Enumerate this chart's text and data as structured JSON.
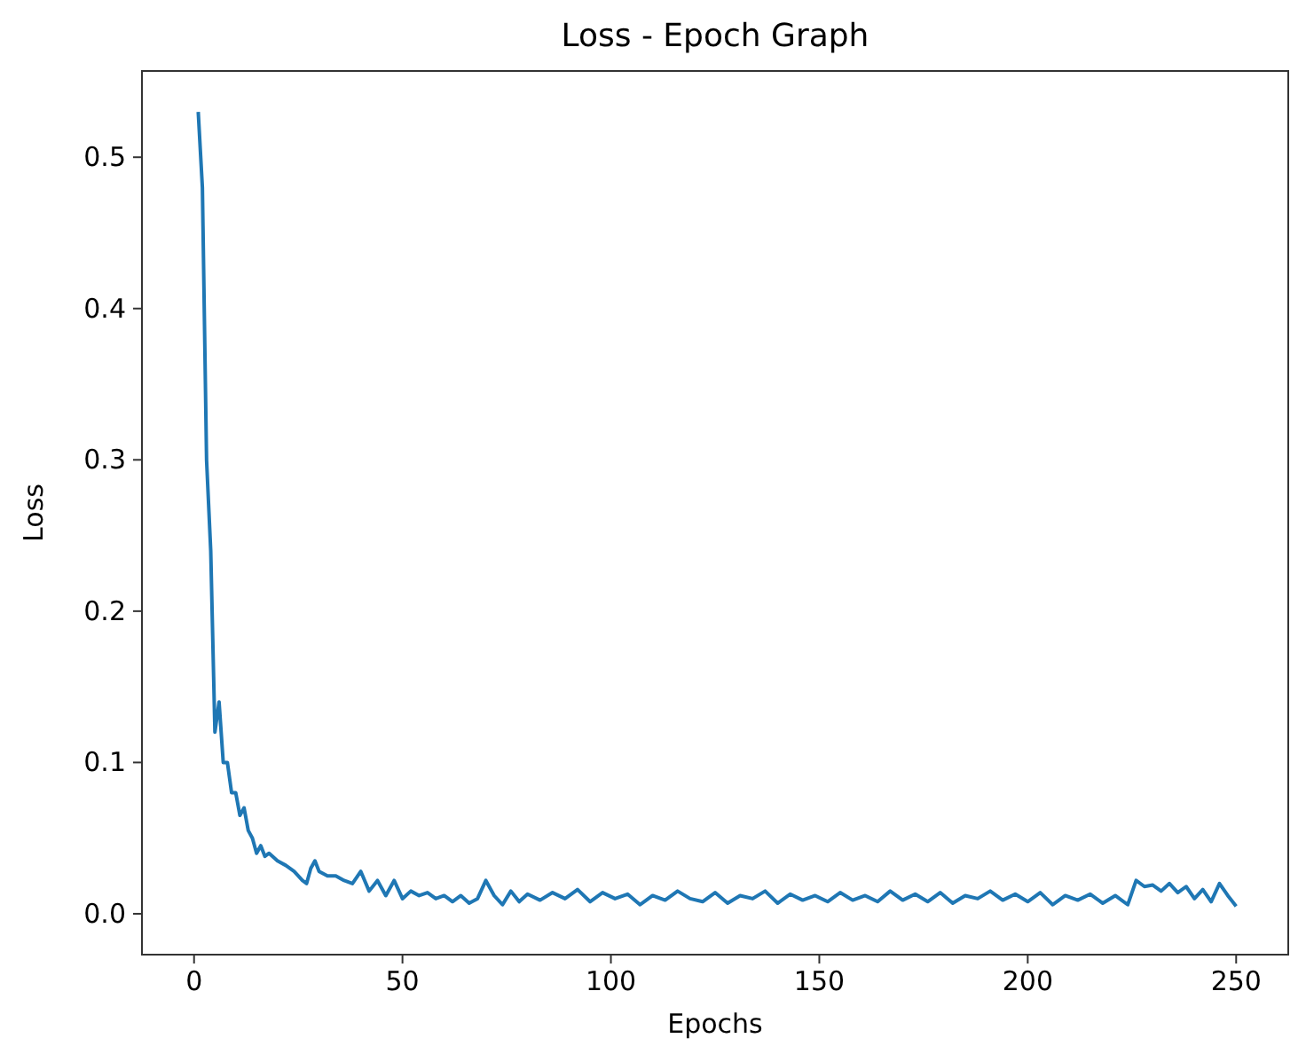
{
  "chart_data": {
    "type": "line",
    "title": "Loss - Epoch Graph",
    "xlabel": "Epochs",
    "ylabel": "Loss",
    "xlim": [
      -12.5,
      262.5
    ],
    "ylim": [
      -0.027,
      0.557
    ],
    "xticks": [
      0,
      50,
      100,
      150,
      200,
      250
    ],
    "yticks": [
      {
        "value": 0,
        "label": "0.0"
      },
      0.1,
      0.2,
      0.3,
      0.4,
      0.5
    ],
    "grid": false,
    "series": [
      {
        "color": "#1f77b4",
        "x": [
          1,
          2,
          3,
          4,
          5,
          6,
          7,
          8,
          9,
          10,
          11,
          12,
          13,
          14,
          15,
          16,
          17,
          18,
          20,
          22,
          24,
          26,
          27,
          28,
          29,
          30,
          32,
          34,
          36,
          38,
          40,
          42,
          44,
          46,
          48,
          50,
          52,
          54,
          56,
          58,
          60,
          62,
          64,
          66,
          68,
          70,
          72,
          74,
          76,
          78,
          80,
          83,
          86,
          89,
          92,
          95,
          98,
          101,
          104,
          107,
          110,
          113,
          116,
          119,
          122,
          125,
          128,
          131,
          134,
          137,
          140,
          143,
          146,
          149,
          152,
          155,
          158,
          161,
          164,
          167,
          170,
          173,
          176,
          179,
          182,
          185,
          188,
          191,
          194,
          197,
          200,
          203,
          206,
          209,
          212,
          215,
          218,
          221,
          224,
          226,
          228,
          230,
          232,
          234,
          236,
          238,
          240,
          242,
          244,
          246,
          248,
          250
        ],
        "values": [
          0.53,
          0.48,
          0.3,
          0.24,
          0.12,
          0.14,
          0.1,
          0.1,
          0.08,
          0.08,
          0.065,
          0.07,
          0.055,
          0.05,
          0.04,
          0.045,
          0.038,
          0.04,
          0.035,
          0.032,
          0.028,
          0.022,
          0.02,
          0.03,
          0.035,
          0.028,
          0.025,
          0.025,
          0.022,
          0.02,
          0.028,
          0.015,
          0.022,
          0.012,
          0.022,
          0.01,
          0.015,
          0.012,
          0.014,
          0.01,
          0.012,
          0.008,
          0.012,
          0.007,
          0.01,
          0.022,
          0.012,
          0.006,
          0.015,
          0.008,
          0.013,
          0.009,
          0.014,
          0.01,
          0.016,
          0.008,
          0.014,
          0.01,
          0.013,
          0.006,
          0.012,
          0.009,
          0.015,
          0.01,
          0.008,
          0.014,
          0.007,
          0.012,
          0.01,
          0.015,
          0.007,
          0.013,
          0.009,
          0.012,
          0.008,
          0.014,
          0.009,
          0.012,
          0.008,
          0.015,
          0.009,
          0.013,
          0.008,
          0.014,
          0.007,
          0.012,
          0.01,
          0.015,
          0.009,
          0.013,
          0.008,
          0.014,
          0.006,
          0.012,
          0.009,
          0.013,
          0.007,
          0.012,
          0.006,
          0.022,
          0.018,
          0.019,
          0.015,
          0.02,
          0.014,
          0.018,
          0.01,
          0.016,
          0.008,
          0.02,
          0.012,
          0.005
        ]
      }
    ]
  }
}
